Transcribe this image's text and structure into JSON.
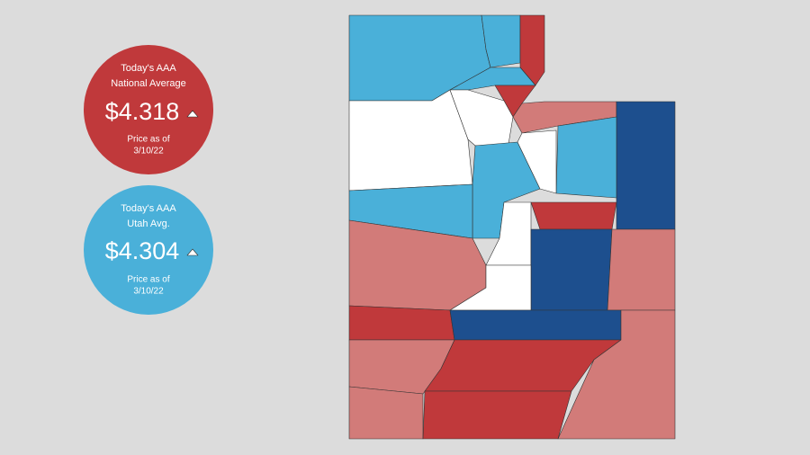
{
  "cards": [
    {
      "heading": [
        "Today's AAA",
        "National Average"
      ],
      "price": "$4.318",
      "note": [
        "Price as of",
        "3/10/22"
      ]
    },
    {
      "heading": [
        "Today's AAA",
        "Utah Avg."
      ],
      "price": "$4.304",
      "note": [
        "Price as of",
        "3/10/22"
      ]
    }
  ]
}
